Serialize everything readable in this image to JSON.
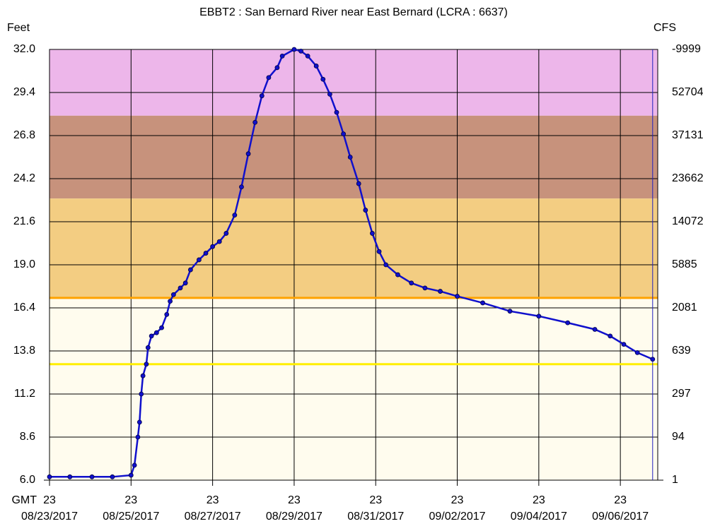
{
  "chart_data": {
    "type": "scatter-line",
    "title": "EBBT2  :  San Bernard River near East Bernard (LCRA : 6637)",
    "y_axis_label": "Feet",
    "y2_axis_label": "CFS",
    "x_axis_label": "GMT",
    "ylim": [
      6.0,
      32.0
    ],
    "yticks": [
      {
        "value": 6,
        "label": "6.0"
      },
      8.6,
      11.2,
      13.8,
      16.4,
      {
        "value": 19,
        "label": "19.0"
      },
      21.6,
      24.2,
      26.8,
      29.4,
      {
        "value": 32,
        "label": "32.0"
      }
    ],
    "y2ticks": [
      1,
      94,
      297,
      639,
      2081,
      5885,
      14072,
      23662,
      37131,
      52704,
      -9999
    ],
    "xlim": [
      "2017-08-23T23:00",
      "2017-09-07T21:00"
    ],
    "xticks": [
      {
        "value": "2017-08-23T23:00",
        "label": "08/23/2017"
      },
      {
        "value": "2017-08-25T23:00",
        "label": "08/25/2017"
      },
      {
        "value": "2017-08-27T23:00",
        "label": "08/27/2017"
      },
      {
        "value": "2017-08-29T23:00",
        "label": "08/29/2017"
      },
      {
        "value": "2017-08-31T23:00",
        "label": "08/31/2017"
      },
      {
        "value": "2017-09-02T23:00",
        "label": "09/02/2017"
      },
      {
        "value": "2017-09-04T23:00",
        "label": "09/04/2017"
      },
      {
        "value": "2017-09-06T23:00",
        "label": "09/06/2017"
      }
    ],
    "xtick_hours": [
      "23",
      "23",
      "23",
      "23",
      "23",
      "23",
      "23",
      "23"
    ],
    "grid": true,
    "bands": [
      {
        "from": 28,
        "to": 32,
        "color": "#edb6ea"
      },
      {
        "from": 23,
        "to": 28,
        "color": "#c7927c"
      },
      {
        "from": 17,
        "to": 23,
        "color": "#f3cd82"
      },
      {
        "from": 6,
        "to": 17,
        "color": "#fffcee"
      }
    ],
    "lines": [
      {
        "value": 17,
        "color": "#ffa200"
      },
      {
        "value": 13,
        "color": "#ffee00"
      }
    ],
    "series": [
      {
        "color": "#1010cc",
        "x": [
          "2017-08-23T23:00",
          "2017-08-24T11:00",
          "2017-08-25T00:00",
          "2017-08-25T12:00",
          "2017-08-25T23:00",
          "2017-08-26T01:00",
          "2017-08-26T03:00",
          "2017-08-26T04:00",
          "2017-08-26T05:00",
          "2017-08-26T06:00",
          "2017-08-26T08:00",
          "2017-08-26T09:00",
          "2017-08-26T11:00",
          "2017-08-26T14:00",
          "2017-08-26T17:00",
          "2017-08-26T20:00",
          "2017-08-26T22:00",
          "2017-08-27T00:00",
          "2017-08-27T04:00",
          "2017-08-27T07:00",
          "2017-08-27T10:00",
          "2017-08-27T15:00",
          "2017-08-27T19:00",
          "2017-08-27T23:00",
          "2017-08-28T03:00",
          "2017-08-28T07:00",
          "2017-08-28T12:00",
          "2017-08-28T16:00",
          "2017-08-28T20:00",
          "2017-08-29T00:00",
          "2017-08-29T04:00",
          "2017-08-29T08:00",
          "2017-08-29T13:00",
          "2017-08-29T16:00",
          "2017-08-29T23:00",
          "2017-08-30T03:00",
          "2017-08-30T07:00",
          "2017-08-30T12:00",
          "2017-08-30T16:00",
          "2017-08-30T20:00",
          "2017-08-31T00:00",
          "2017-08-31T04:00",
          "2017-08-31T08:00",
          "2017-08-31T13:00",
          "2017-08-31T17:00",
          "2017-08-31T21:00",
          "2017-09-01T01:00",
          "2017-09-01T05:00",
          "2017-09-01T12:00",
          "2017-09-01T20:00",
          "2017-09-02T04:00",
          "2017-09-02T13:00",
          "2017-09-02T23:00",
          "2017-09-03T14:00",
          "2017-09-04T06:00",
          "2017-09-04T23:00",
          "2017-09-05T16:00",
          "2017-09-06T08:00",
          "2017-09-06T17:00",
          "2017-09-07T01:00",
          "2017-09-07T09:00",
          "2017-09-07T18:00"
        ],
        "values": [
          6.2,
          6.2,
          6.2,
          6.2,
          6.3,
          6.9,
          8.6,
          9.5,
          11.2,
          12.3,
          13.0,
          14.0,
          14.7,
          14.9,
          15.2,
          16.0,
          16.8,
          17.2,
          17.6,
          17.9,
          18.7,
          19.3,
          19.7,
          20.1,
          20.4,
          20.9,
          22.0,
          23.7,
          25.7,
          27.6,
          29.2,
          30.3,
          30.9,
          31.6,
          32.0,
          31.9,
          31.6,
          31.0,
          30.2,
          29.3,
          28.2,
          26.9,
          25.5,
          23.9,
          22.3,
          20.9,
          19.8,
          19.0,
          18.4,
          17.9,
          17.6,
          17.4,
          17.1,
          16.7,
          16.2,
          15.9,
          15.5,
          15.1,
          14.7,
          14.2,
          13.7,
          13.3
        ]
      }
    ]
  }
}
